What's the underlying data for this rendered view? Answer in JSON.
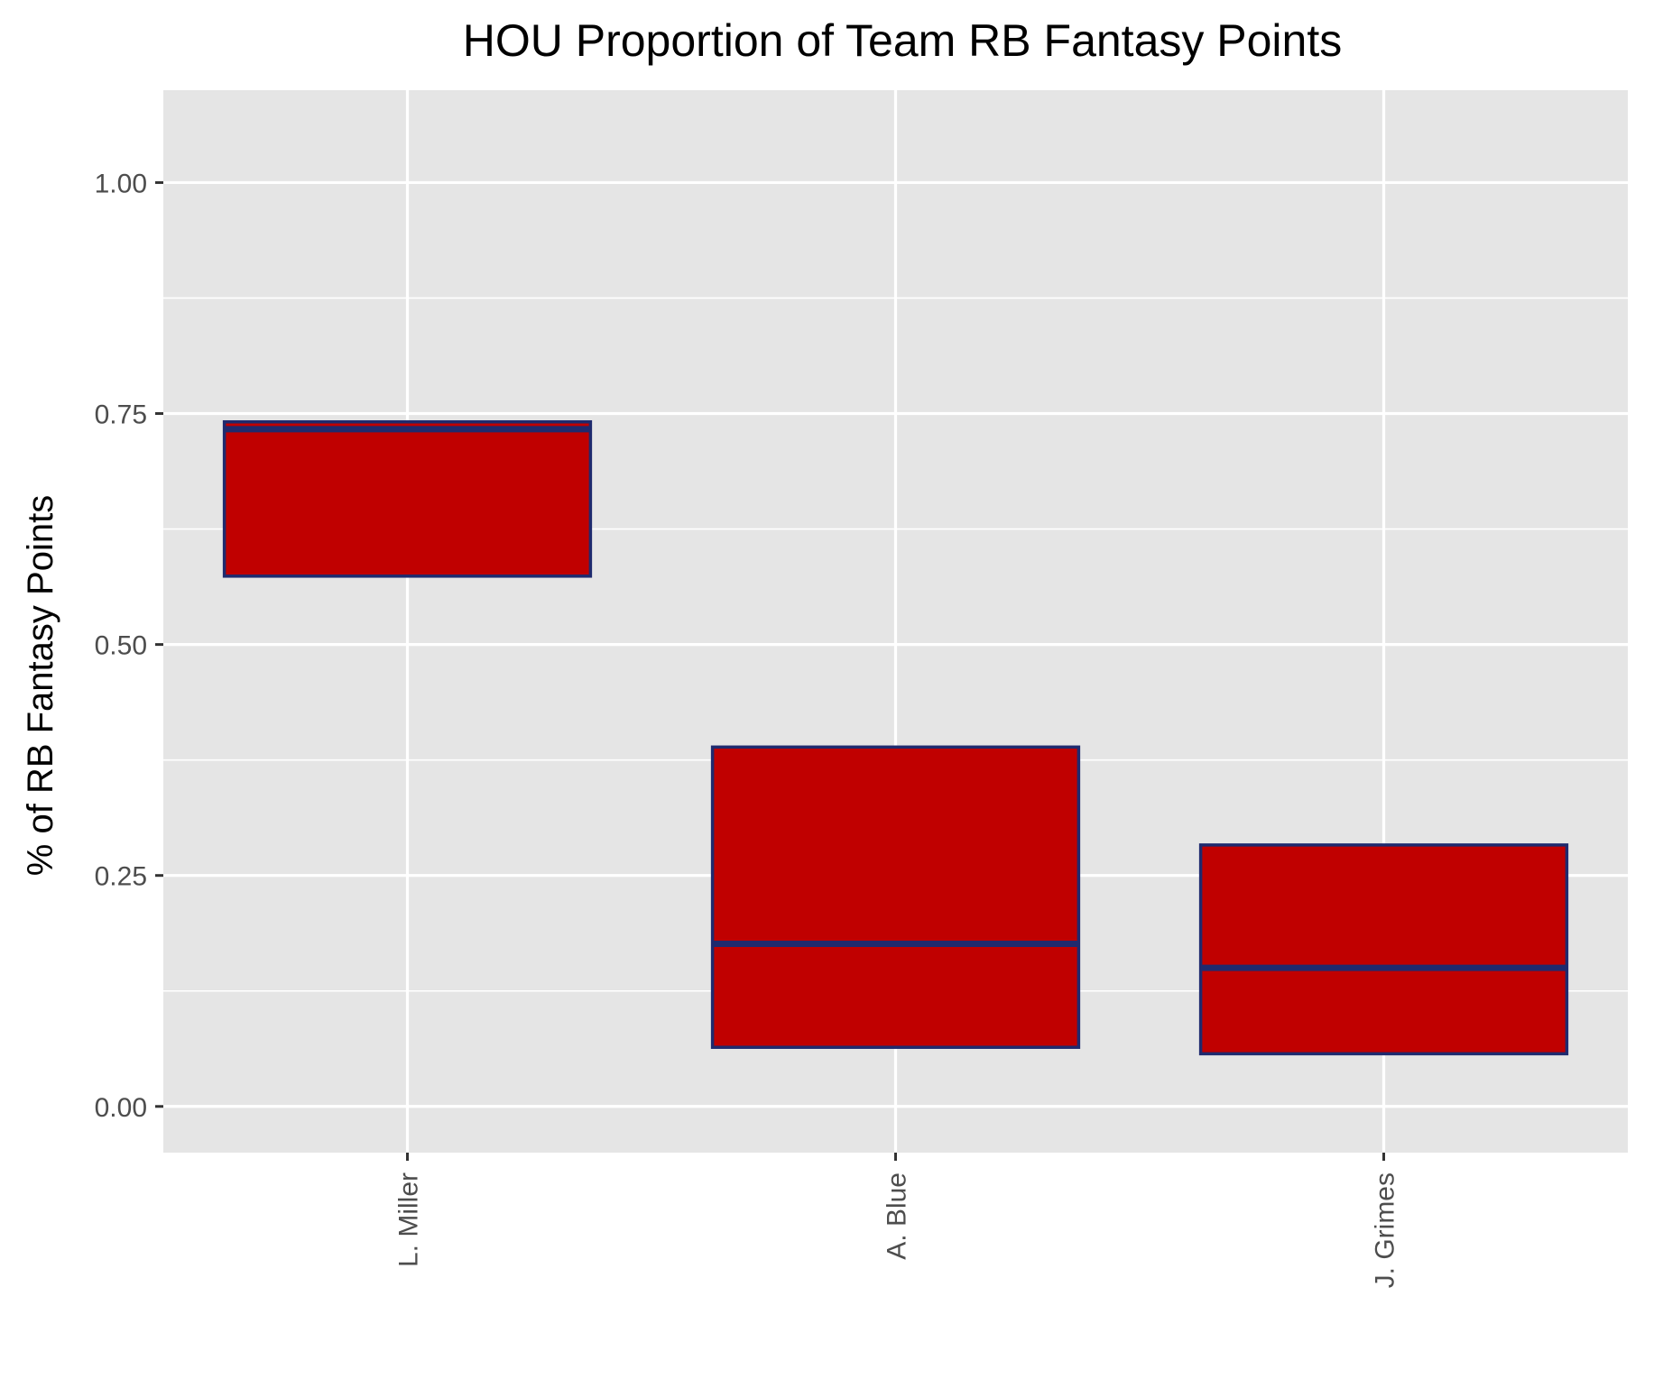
{
  "chart_data": {
    "type": "boxplot",
    "title": "HOU Proportion of Team RB Fantasy Points",
    "xlabel": "",
    "ylabel": "% of RB Fantasy Points",
    "ylim": [
      -0.05,
      1.1
    ],
    "yticks": [
      0.0,
      0.25,
      0.5,
      0.75,
      1.0
    ],
    "ytick_labels": [
      "0.00",
      "0.25",
      "0.50",
      "0.75",
      "1.00"
    ],
    "grid": true,
    "legend": "none",
    "categories": [
      "L. Miller",
      "A. Blue",
      "J. Grimes"
    ],
    "boxes": [
      {
        "category": "L. Miller",
        "q1": 0.574,
        "median": 0.733,
        "q3": 0.741
      },
      {
        "category": "A. Blue",
        "q1": 0.064,
        "median": 0.176,
        "q3": 0.389
      },
      {
        "category": "J. Grimes",
        "q1": 0.057,
        "median": 0.15,
        "q3": 0.283
      }
    ],
    "colors": {
      "box_fill": "#c00000",
      "box_outline": "#1f2a6e",
      "panel_background": "#e5e5e5",
      "grid": "#ffffff",
      "tick_text": "#4d4d4d"
    }
  }
}
